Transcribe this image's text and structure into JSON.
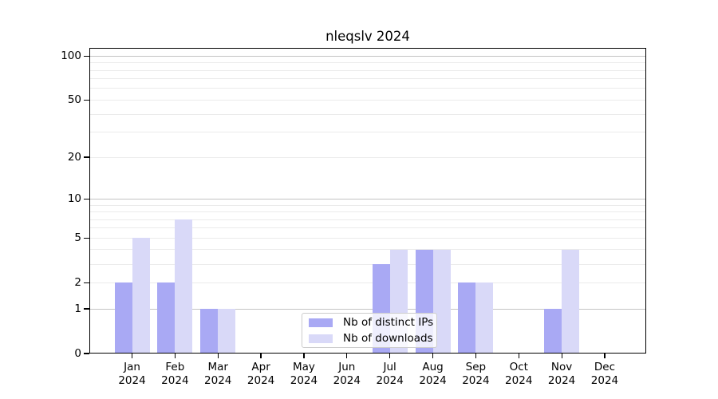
{
  "chart_data": {
    "type": "bar",
    "title": "nleqslv 2024",
    "categories": [
      "Jan",
      "Feb",
      "Mar",
      "Apr",
      "May",
      "Jun",
      "Jul",
      "Aug",
      "Sep",
      "Oct",
      "Nov",
      "Dec"
    ],
    "year_label": "2024",
    "series": [
      {
        "name": "Nb of distinct IPs",
        "color": "#a9a9f4",
        "values": [
          2,
          2,
          1,
          0,
          0,
          0,
          3,
          4,
          2,
          0,
          1,
          0
        ]
      },
      {
        "name": "Nb of downloads",
        "color": "#d9d9f8",
        "values": [
          5,
          7,
          1,
          0,
          0,
          0,
          4,
          4,
          2,
          0,
          4,
          0
        ]
      }
    ],
    "xlabel": "",
    "ylabel": "",
    "yscale": "log1p",
    "ylim": [
      0,
      115
    ],
    "yticks": [
      0,
      1,
      2,
      5,
      10,
      20,
      50,
      100
    ],
    "grid": {
      "major_values": [
        1,
        10,
        100
      ],
      "minor_values": [
        2,
        3,
        4,
        5,
        6,
        7,
        8,
        9,
        20,
        30,
        40,
        50,
        60,
        70,
        80,
        90
      ],
      "major_color": "#c3c3c3",
      "minor_color": "#ebebeb"
    },
    "legend": {
      "position": "lower-center",
      "entries": [
        "Nb of distinct IPs",
        "Nb of downloads"
      ]
    }
  }
}
